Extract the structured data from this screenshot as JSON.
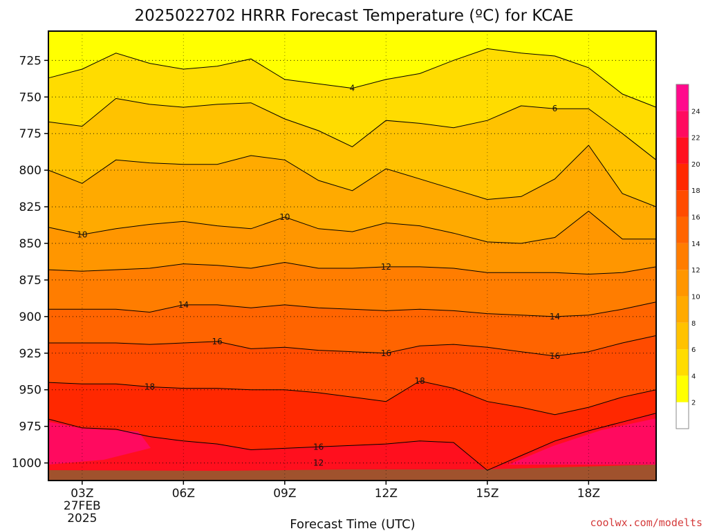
{
  "chart_data": {
    "type": "heatmap",
    "title": "2025022702 HRRR Forecast Temperature (ºC) for KCAE",
    "xlabel": "Forecast Time (UTC)",
    "x_ticks": [
      "03Z",
      "06Z",
      "09Z",
      "12Z",
      "15Z",
      "18Z"
    ],
    "x_first_tick_sublabels": [
      "27FEB",
      "2025"
    ],
    "x_range_hours": [
      2,
      20
    ],
    "y_ticks": [
      725,
      750,
      775,
      800,
      825,
      850,
      875,
      900,
      925,
      950,
      975,
      1000
    ],
    "y_range_hpa": [
      1012,
      705
    ],
    "y_axis_inverted": true,
    "grid": "dotted",
    "colorbar_levels": [
      2,
      4,
      6,
      8,
      10,
      12,
      14,
      16,
      18,
      20,
      22,
      24
    ],
    "colorbar_colors": [
      "#ffffff",
      "#ffff00",
      "#ffdc00",
      "#ffc200",
      "#ffaa00",
      "#ff9600",
      "#ff7d00",
      "#ff6400",
      "#ff4b00",
      "#ff2800",
      "#ff0f1e",
      "#ff0a5f",
      "#ff0a8c"
    ],
    "contour_labels": [
      "4",
      "6",
      "10",
      "10",
      "12",
      "14",
      "14",
      "16",
      "16",
      "16",
      "18",
      "18",
      "16",
      "12"
    ],
    "ground_color": "#a0522d",
    "contours": [
      {
        "level": 4,
        "points": [
          [
            2,
            737
          ],
          [
            3,
            731
          ],
          [
            4,
            720
          ],
          [
            5,
            727
          ],
          [
            6,
            731
          ],
          [
            7,
            729
          ],
          [
            8,
            724
          ],
          [
            9,
            738
          ],
          [
            10,
            741
          ],
          [
            11,
            744
          ],
          [
            12,
            738
          ],
          [
            13,
            734
          ],
          [
            14,
            725
          ],
          [
            15,
            717
          ],
          [
            16,
            720
          ],
          [
            17,
            722
          ],
          [
            18,
            730
          ],
          [
            19,
            748
          ],
          [
            20,
            757
          ]
        ]
      },
      {
        "level": 6,
        "points": [
          [
            2,
            767
          ],
          [
            3,
            770
          ],
          [
            4,
            751
          ],
          [
            5,
            755
          ],
          [
            6,
            757
          ],
          [
            7,
            755
          ],
          [
            8,
            754
          ],
          [
            9,
            765
          ],
          [
            10,
            773
          ],
          [
            11,
            784
          ],
          [
            12,
            766
          ],
          [
            13,
            768
          ],
          [
            14,
            771
          ],
          [
            15,
            766
          ],
          [
            16,
            756
          ],
          [
            17,
            758
          ],
          [
            18,
            758
          ],
          [
            19,
            775
          ],
          [
            20,
            793
          ]
        ]
      },
      {
        "level": 8,
        "points": [
          [
            2,
            800
          ],
          [
            3,
            809
          ],
          [
            4,
            793
          ],
          [
            5,
            795
          ],
          [
            6,
            796
          ],
          [
            7,
            796
          ],
          [
            8,
            790
          ],
          [
            9,
            793
          ],
          [
            10,
            807
          ],
          [
            11,
            814
          ],
          [
            12,
            799
          ],
          [
            13,
            806
          ],
          [
            14,
            813
          ],
          [
            15,
            820
          ],
          [
            16,
            818
          ],
          [
            17,
            806
          ],
          [
            18,
            783
          ],
          [
            19,
            816
          ],
          [
            20,
            825
          ]
        ]
      },
      {
        "level": 10,
        "points": [
          [
            2,
            839
          ],
          [
            3,
            844
          ],
          [
            4,
            840
          ],
          [
            5,
            837
          ],
          [
            6,
            835
          ],
          [
            7,
            838
          ],
          [
            8,
            840
          ],
          [
            9,
            832
          ],
          [
            10,
            840
          ],
          [
            11,
            842
          ],
          [
            12,
            836
          ],
          [
            13,
            838
          ],
          [
            14,
            843
          ],
          [
            15,
            849
          ],
          [
            16,
            850
          ],
          [
            17,
            846
          ],
          [
            18,
            828
          ],
          [
            19,
            847
          ],
          [
            20,
            847
          ]
        ]
      },
      {
        "level": 12,
        "points": [
          [
            2,
            868
          ],
          [
            3,
            869
          ],
          [
            4,
            868
          ],
          [
            5,
            867
          ],
          [
            6,
            864
          ],
          [
            7,
            865
          ],
          [
            8,
            867
          ],
          [
            9,
            863
          ],
          [
            10,
            867
          ],
          [
            11,
            867
          ],
          [
            12,
            866
          ],
          [
            13,
            866
          ],
          [
            14,
            867
          ],
          [
            15,
            870
          ],
          [
            16,
            870
          ],
          [
            17,
            870
          ],
          [
            18,
            871
          ],
          [
            19,
            870
          ],
          [
            20,
            866
          ]
        ]
      },
      {
        "level": 14,
        "points": [
          [
            2,
            895
          ],
          [
            3,
            895
          ],
          [
            4,
            895
          ],
          [
            5,
            897
          ],
          [
            6,
            892
          ],
          [
            7,
            892
          ],
          [
            8,
            894
          ],
          [
            9,
            892
          ],
          [
            10,
            894
          ],
          [
            11,
            895
          ],
          [
            12,
            896
          ],
          [
            13,
            895
          ],
          [
            14,
            896
          ],
          [
            15,
            898
          ],
          [
            16,
            899
          ],
          [
            17,
            900
          ],
          [
            18,
            899
          ],
          [
            19,
            895
          ],
          [
            20,
            890
          ]
        ]
      },
      {
        "level": 16,
        "points": [
          [
            2,
            918
          ],
          [
            3,
            918
          ],
          [
            4,
            918
          ],
          [
            5,
            919
          ],
          [
            6,
            918
          ],
          [
            7,
            917
          ],
          [
            8,
            922
          ],
          [
            9,
            921
          ],
          [
            10,
            923
          ],
          [
            11,
            924
          ],
          [
            12,
            925
          ],
          [
            13,
            920
          ],
          [
            14,
            919
          ],
          [
            15,
            921
          ],
          [
            16,
            924
          ],
          [
            17,
            927
          ],
          [
            18,
            924
          ],
          [
            19,
            918
          ],
          [
            20,
            913
          ]
        ]
      },
      {
        "level": 18,
        "points": [
          [
            2,
            945
          ],
          [
            3,
            946
          ],
          [
            4,
            946
          ],
          [
            5,
            948
          ],
          [
            6,
            949
          ],
          [
            7,
            949
          ],
          [
            8,
            950
          ],
          [
            9,
            950
          ],
          [
            10,
            952
          ],
          [
            11,
            955
          ],
          [
            12,
            958
          ],
          [
            13,
            944
          ],
          [
            14,
            949
          ],
          [
            15,
            958
          ],
          [
            16,
            962
          ],
          [
            17,
            967
          ],
          [
            18,
            962
          ],
          [
            19,
            955
          ],
          [
            20,
            950
          ]
        ]
      },
      {
        "level": 20,
        "points": [
          [
            2,
            970
          ],
          [
            3,
            976
          ],
          [
            4,
            977
          ],
          [
            5,
            982
          ],
          [
            6,
            985
          ],
          [
            7,
            987
          ],
          [
            8,
            991
          ],
          [
            9,
            990
          ],
          [
            10,
            989
          ],
          [
            11,
            988
          ],
          [
            12,
            987
          ],
          [
            13,
            985
          ],
          [
            14,
            986
          ],
          [
            15,
            1005
          ],
          [
            16,
            995
          ],
          [
            17,
            985
          ],
          [
            18,
            978
          ],
          [
            19,
            972
          ],
          [
            20,
            966
          ]
        ]
      }
    ]
  },
  "credit": "coolwx.com/modelts"
}
